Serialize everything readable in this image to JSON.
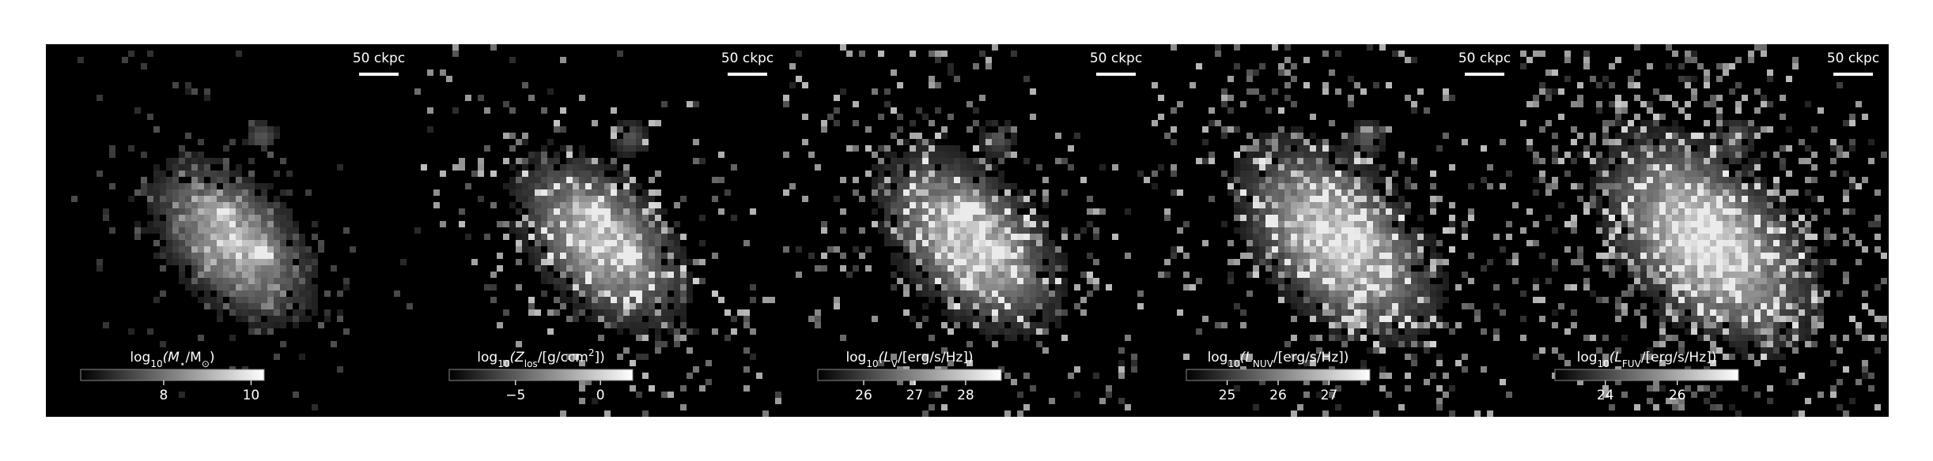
{
  "panels": [
    {
      "scale_label": "50 ckpc",
      "colorbar": {
        "label_parts": [
          {
            "text": "log"
          },
          {
            "text": "10",
            "sub": true
          },
          {
            "text": "(M"
          },
          {
            "text": "⋆",
            "sub": true
          },
          {
            "text": "/M"
          },
          {
            "text": "⊙",
            "sub": true
          },
          {
            "text": ")"
          }
        ],
        "clim": [
          6.1,
          10.3
        ],
        "ticks": [
          8,
          10
        ]
      }
    },
    {
      "scale_label": "50 ckpc",
      "colorbar": {
        "label_parts": [
          {
            "text": "log"
          },
          {
            "text": "10",
            "sub": true
          },
          {
            "text": "(Z"
          },
          {
            "text": "los",
            "sub": true
          },
          {
            "text": "/[g/ccm"
          },
          {
            "text": "2",
            "sup": true
          },
          {
            "text": "])"
          }
        ],
        "clim": [
          -8.9,
          1.9
        ],
        "ticks": [
          {
            "value": -5,
            "label": "−5"
          },
          0
        ]
      }
    },
    {
      "scale_label": "50 ckpc",
      "colorbar": {
        "label_parts": [
          {
            "text": "log"
          },
          {
            "text": "10",
            "sub": true
          },
          {
            "text": "(L"
          },
          {
            "text": "V",
            "sub": true
          },
          {
            "text": "/[erg/s/Hz])"
          }
        ],
        "clim": [
          25.1,
          28.7
        ],
        "ticks": [
          26,
          27,
          28
        ]
      }
    },
    {
      "scale_label": "50 ckpc",
      "colorbar": {
        "label_parts": [
          {
            "text": "log"
          },
          {
            "text": "10",
            "sub": true
          },
          {
            "text": "(L"
          },
          {
            "text": "NUV",
            "sub": true
          },
          {
            "text": "/[erg/s/Hz])"
          }
        ],
        "clim": [
          24.2,
          27.8
        ],
        "ticks": [
          25,
          26,
          27
        ]
      }
    },
    {
      "scale_label": "50 ckpc",
      "colorbar": {
        "label_parts": [
          {
            "text": "log"
          },
          {
            "text": "10",
            "sub": true
          },
          {
            "text": "(L"
          },
          {
            "text": "FUV",
            "sub": true
          },
          {
            "text": "/[erg/s/Hz])"
          }
        ],
        "clim": [
          22.6,
          27.7
        ],
        "ticks": [
          24,
          26
        ]
      }
    }
  ]
}
